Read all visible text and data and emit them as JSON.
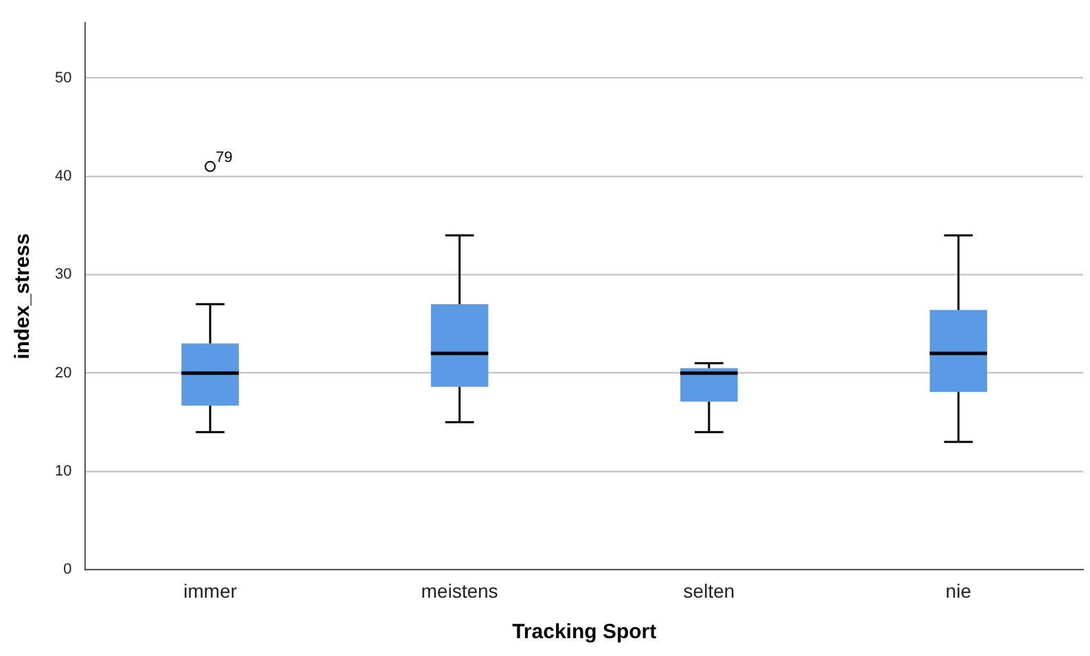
{
  "chart_data": {
    "type": "box",
    "xlabel": "Tracking Sport",
    "ylabel": "index_stress",
    "categories": [
      "immer",
      "meistens",
      "selten",
      "nie"
    ],
    "color": "#5b9be6",
    "boxes": [
      {
        "low": 14,
        "q1": 16.7,
        "median": 20,
        "q3": 23,
        "high": 27,
        "outliers": [
          41
        ]
      },
      {
        "low": 15,
        "q1": 18.6,
        "median": 22,
        "q3": 27,
        "high": 34
      },
      {
        "low": 14,
        "q1": 17.1,
        "median": 20,
        "q3": 20.5,
        "high": 21
      },
      {
        "low": 13,
        "q1": 18.1,
        "median": 22,
        "q3": 26.4,
        "high": 34
      }
    ],
    "annotations": [
      "79"
    ],
    "ylim": [
      0,
      55.6
    ],
    "yticks": [
      0,
      10,
      20,
      30,
      40,
      50
    ],
    "grid": "y",
    "legend": false
  }
}
